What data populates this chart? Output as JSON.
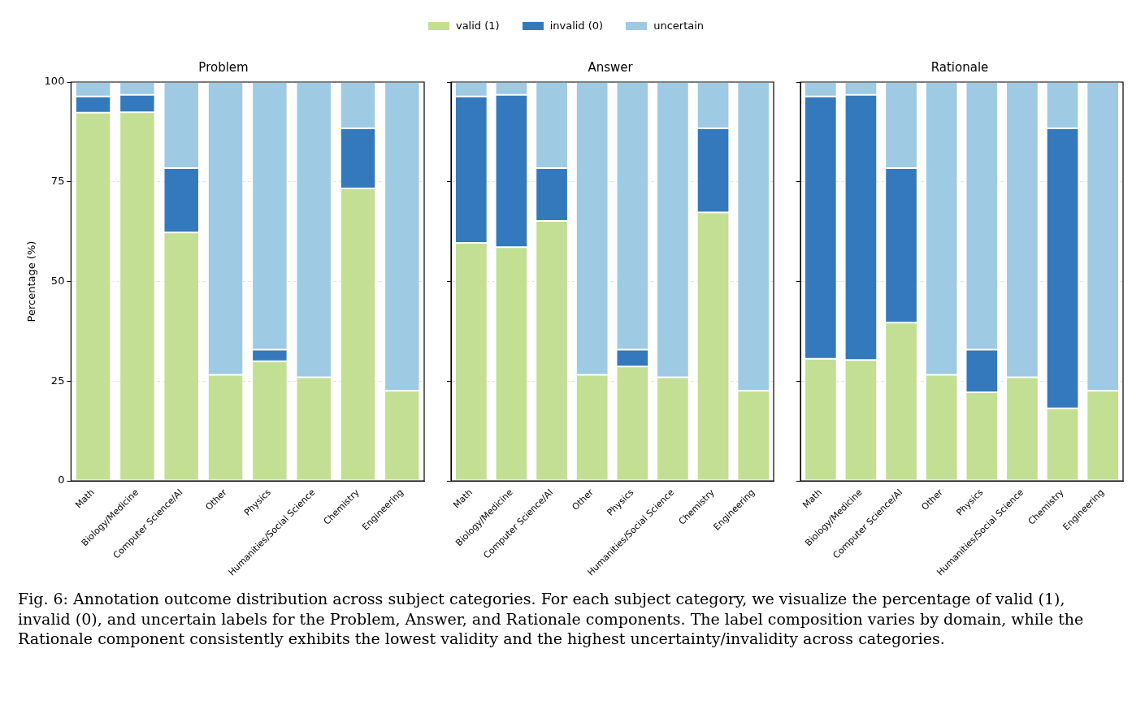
{
  "chart_data": [
    {
      "type": "bar",
      "title": "Problem",
      "ylabel": "Percentage (%)",
      "categories": [
        "Math",
        "Biology/Medicine",
        "Computer Science/AI",
        "Other",
        "Physics",
        "Humanities/Social Science",
        "Chemistry",
        "Engineering"
      ],
      "stacked": true,
      "ylim": [
        0,
        100
      ],
      "yticks": [
        0,
        25,
        50,
        75,
        100
      ],
      "grid": "y",
      "legend": "top",
      "series": [
        {
          "name": "valid (1)",
          "color": "#c2df94",
          "values": [
            92.3,
            92.4,
            62.3,
            26.6,
            30.0,
            26.0,
            73.3,
            22.6
          ]
        },
        {
          "name": "invalid (0)",
          "color": "#3579bd",
          "values": [
            4.1,
            4.4,
            16.1,
            0,
            2.9,
            0,
            15.1,
            0
          ]
        },
        {
          "name": "uncertain",
          "color": "#9ecae4",
          "values": [
            3.6,
            3.2,
            21.6,
            73.4,
            67.1,
            74.0,
            11.6,
            77.4
          ]
        }
      ],
      "annotations": [
        "Fig. 6: Annotation outcome distribution across subject categories. For each subject category, we visualize the percentage of valid (1), invalid (0), and uncertain labels for the Problem, Answer, and Rationale components. The label composition varies by domain, while the Rationale component consistently exhibits the lowest validity and the highest uncertainty/invalidity across categories."
      ]
    },
    {
      "type": "bar",
      "title": "Answer",
      "categories": [
        "Math",
        "Biology/Medicine",
        "Computer Science/AI",
        "Other",
        "Physics",
        "Humanities/Social Science",
        "Chemistry",
        "Engineering"
      ],
      "stacked": true,
      "ylim": [
        0,
        100
      ],
      "yticks": [
        0,
        25,
        50,
        75,
        100
      ],
      "grid": "y",
      "tick_labels": "x",
      "series": [
        {
          "color": "#c2df94",
          "values": [
            59.7,
            58.6,
            65.2,
            26.6,
            28.7,
            26.0,
            67.3,
            22.6
          ]
        },
        {
          "color": "#3579bd",
          "values": [
            36.7,
            38.2,
            13.2,
            0,
            4.2,
            0,
            21.1,
            0
          ]
        },
        {
          "color": "#9ecae4",
          "values": [
            3.6,
            3.2,
            21.6,
            73.4,
            67.1,
            74.0,
            11.6,
            77.4
          ]
        }
      ]
    },
    {
      "type": "bar",
      "title": "Rationale",
      "categories": [
        "Math",
        "Biology/Medicine",
        "Computer Science/AI",
        "Other",
        "Physics",
        "Humanities/Social Science",
        "Chemistry",
        "Engineering"
      ],
      "stacked": true,
      "ylim": [
        0,
        100
      ],
      "yticks": [
        0,
        25,
        50,
        75,
        100
      ],
      "grid": "y",
      "tick_labels": "x",
      "series": [
        {
          "color": "#c2df94",
          "values": [
            30.6,
            30.3,
            39.7,
            26.6,
            22.2,
            26.0,
            18.2,
            22.6
          ]
        },
        {
          "color": "#3579bd",
          "values": [
            65.8,
            66.5,
            38.7,
            0,
            10.7,
            0,
            70.2,
            0
          ]
        },
        {
          "color": "#9ecae4",
          "values": [
            3.6,
            3.2,
            21.6,
            73.4,
            67.1,
            74.0,
            11.6,
            77.4
          ]
        }
      ]
    }
  ]
}
